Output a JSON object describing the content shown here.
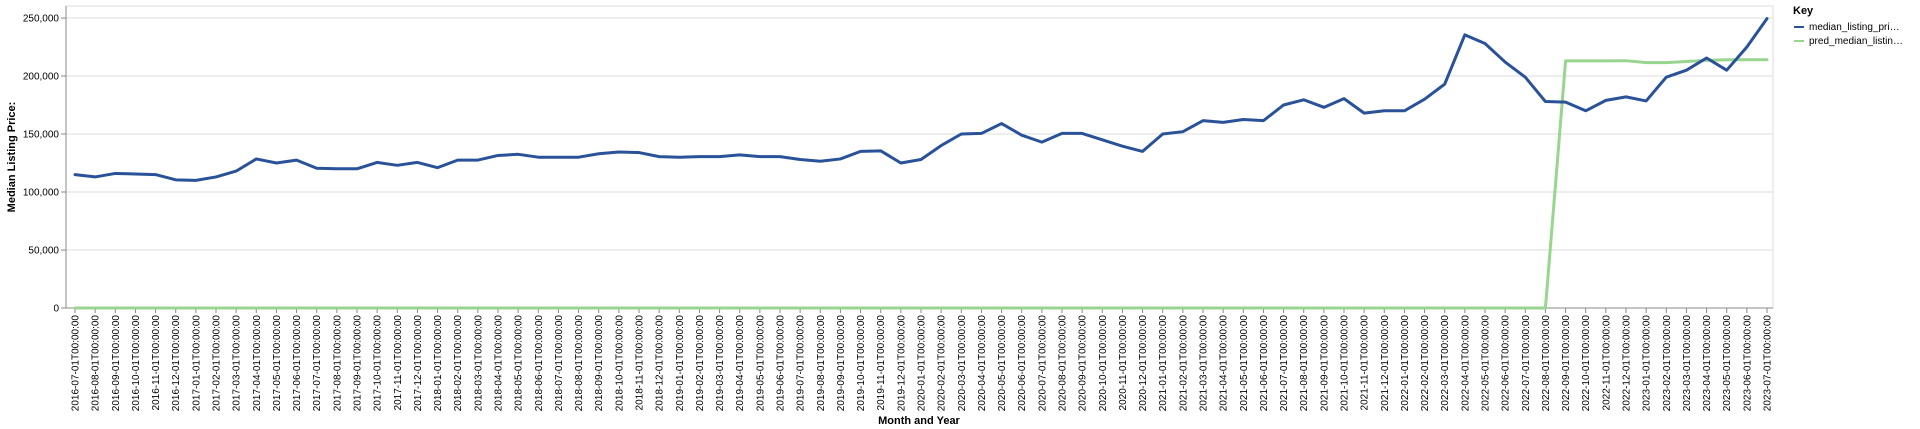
{
  "chart_data": {
    "type": "line",
    "xlabel": "Month and Year",
    "ylabel": "Median Listing Price:",
    "ylim": [
      0,
      250000
    ],
    "yticks": [
      "0",
      "50,000",
      "100,000",
      "150,000",
      "200,000",
      "250,000"
    ],
    "yticks_values": [
      0,
      50000,
      100000,
      150000,
      200000,
      250000
    ],
    "grid": true,
    "legend": {
      "title": "Key",
      "placement": "top-right",
      "entries": [
        "median_listing_pri…",
        "pred_median_listin…"
      ]
    },
    "colors": {
      "series1": "#2a5298",
      "series2": "#98d68f",
      "grid": "#dddddd"
    },
    "x": [
      "2016-07-01T00:00:00",
      "2016-08-01T00:00:00",
      "2016-09-01T00:00:00",
      "2016-10-01T00:00:00",
      "2016-11-01T00:00:00",
      "2016-12-01T00:00:00",
      "2017-01-01T00:00:00",
      "2017-02-01T00:00:00",
      "2017-03-01T00:00:00",
      "2017-04-01T00:00:00",
      "2017-05-01T00:00:00",
      "2017-06-01T00:00:00",
      "2017-07-01T00:00:00",
      "2017-08-01T00:00:00",
      "2017-09-01T00:00:00",
      "2017-10-01T00:00:00",
      "2017-11-01T00:00:00",
      "2017-12-01T00:00:00",
      "2018-01-01T00:00:00",
      "2018-02-01T00:00:00",
      "2018-03-01T00:00:00",
      "2018-04-01T00:00:00",
      "2018-05-01T00:00:00",
      "2018-06-01T00:00:00",
      "2018-07-01T00:00:00",
      "2018-08-01T00:00:00",
      "2018-09-01T00:00:00",
      "2018-10-01T00:00:00",
      "2018-11-01T00:00:00",
      "2018-12-01T00:00:00",
      "2019-01-01T00:00:00",
      "2019-02-01T00:00:00",
      "2019-03-01T00:00:00",
      "2019-04-01T00:00:00",
      "2019-05-01T00:00:00",
      "2019-06-01T00:00:00",
      "2019-07-01T00:00:00",
      "2019-08-01T00:00:00",
      "2019-09-01T00:00:00",
      "2019-10-01T00:00:00",
      "2019-11-01T00:00:00",
      "2019-12-01T00:00:00",
      "2020-01-01T00:00:00",
      "2020-02-01T00:00:00",
      "2020-03-01T00:00:00",
      "2020-04-01T00:00:00",
      "2020-05-01T00:00:00",
      "2020-06-01T00:00:00",
      "2020-07-01T00:00:00",
      "2020-08-01T00:00:00",
      "2020-09-01T00:00:00",
      "2020-10-01T00:00:00",
      "2020-11-01T00:00:00",
      "2020-12-01T00:00:00",
      "2021-01-01T00:00:00",
      "2021-02-01T00:00:00",
      "2021-03-01T00:00:00",
      "2021-04-01T00:00:00",
      "2021-05-01T00:00:00",
      "2021-06-01T00:00:00",
      "2021-07-01T00:00:00",
      "2021-08-01T00:00:00",
      "2021-09-01T00:00:00",
      "2021-10-01T00:00:00",
      "2021-11-01T00:00:00",
      "2021-12-01T00:00:00",
      "2022-01-01T00:00:00",
      "2022-02-01T00:00:00",
      "2022-03-01T00:00:00",
      "2022-04-01T00:00:00",
      "2022-05-01T00:00:00",
      "2022-06-01T00:00:00",
      "2022-07-01T00:00:00",
      "2022-08-01T00:00:00",
      "2022-09-01T00:00:00",
      "2022-10-01T00:00:00",
      "2022-11-01T00:00:00",
      "2022-12-01T00:00:00",
      "2023-01-01T00:00:00",
      "2023-02-01T00:00:00",
      "2023-03-01T00:00:00",
      "2023-04-01T00:00:00",
      "2023-05-01T00:00:00",
      "2023-06-01T00:00:00",
      "2023-07-01T00:00:00"
    ],
    "series": [
      {
        "name": "median_listing_pri…",
        "values": [
          115000,
          113000,
          116000,
          115500,
          115000,
          110500,
          110000,
          113000,
          118000,
          128500,
          125000,
          127500,
          120500,
          120000,
          120000,
          125500,
          123000,
          125500,
          121000,
          127500,
          127500,
          131500,
          132500,
          130000,
          130000,
          130000,
          133000,
          134500,
          134000,
          130500,
          130000,
          130500,
          130500,
          132000,
          130500,
          130500,
          128000,
          126500,
          128500,
          135000,
          135500,
          125000,
          128000,
          140000,
          150000,
          150500,
          159000,
          149000,
          143000,
          150500,
          150500,
          145000,
          139500,
          135000,
          150000,
          152000,
          161500,
          160000,
          162500,
          161500,
          175000,
          179500,
          173000,
          180500,
          168000,
          170000,
          170000,
          180000,
          193000,
          235500,
          228000,
          212000,
          199000,
          178000,
          177500,
          170000,
          179000,
          182000,
          178500,
          199000,
          205000,
          215500,
          205000,
          225000,
          249500
        ]
      },
      {
        "name": "pred_median_listin…",
        "values": [
          0,
          0,
          0,
          0,
          0,
          0,
          0,
          0,
          0,
          0,
          0,
          0,
          0,
          0,
          0,
          0,
          0,
          0,
          0,
          0,
          0,
          0,
          0,
          0,
          0,
          0,
          0,
          0,
          0,
          0,
          0,
          0,
          0,
          0,
          0,
          0,
          0,
          0,
          0,
          0,
          0,
          0,
          0,
          0,
          0,
          0,
          0,
          0,
          0,
          0,
          0,
          0,
          0,
          0,
          0,
          0,
          0,
          0,
          0,
          0,
          0,
          0,
          0,
          0,
          0,
          0,
          0,
          0,
          0,
          0,
          0,
          0,
          0,
          0,
          213000,
          213000,
          213000,
          213200,
          211500,
          211500,
          212500,
          213500,
          214000,
          214000,
          214000
        ]
      }
    ]
  }
}
